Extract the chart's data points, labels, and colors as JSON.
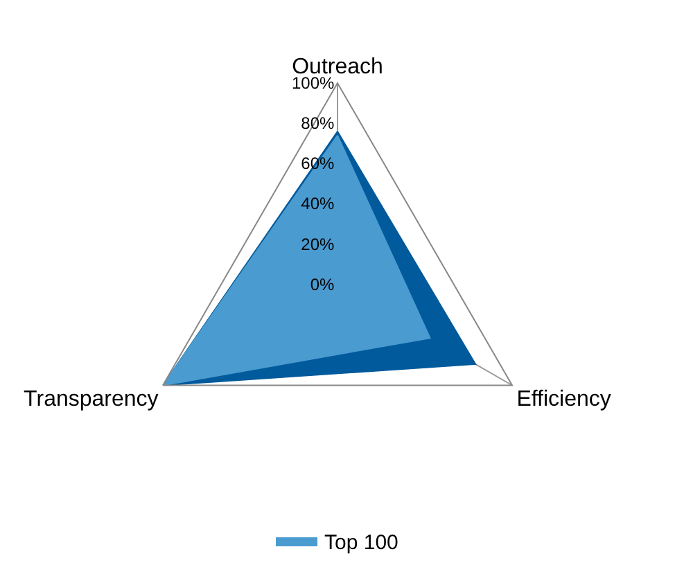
{
  "chart_data": {
    "type": "radar",
    "categories": [
      "Outreach",
      "Efficiency",
      "Transparency"
    ],
    "series": [
      {
        "color": "#005a9c",
        "values": [
          76,
          79,
          100
        ]
      },
      {
        "name": "Top 100",
        "color": "#4a9bd0",
        "values": [
          74,
          53,
          100
        ]
      }
    ],
    "ylim": [
      0,
      100
    ],
    "yticks": [
      {
        "value": 0,
        "label": "0%"
      },
      {
        "value": 20,
        "label": "20%"
      },
      {
        "value": 40,
        "label": "40%"
      },
      {
        "value": 60,
        "label": "60%"
      },
      {
        "value": 80,
        "label": "80%"
      },
      {
        "value": 100,
        "label": "100%"
      }
    ],
    "grid": false,
    "legend": "bottom"
  }
}
